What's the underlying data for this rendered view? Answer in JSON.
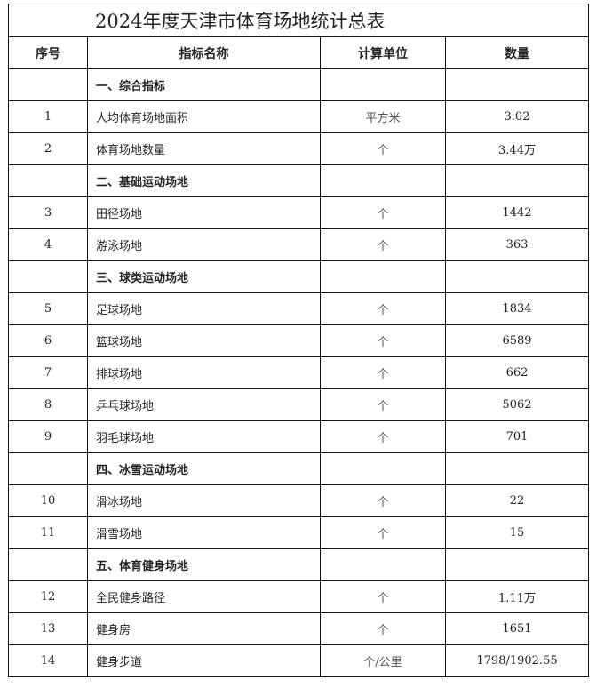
{
  "title": "2024年度天津市体育场地统计总表",
  "headers": [
    "序号",
    "指标名称",
    "计算单位",
    "数量"
  ],
  "rows": [
    {
      "no": "",
      "name": "一、综合指标",
      "unit": "",
      "value": "",
      "section": true
    },
    {
      "no": "1",
      "name": "人均体育场地面积",
      "unit": "平方米",
      "value": "3.02"
    },
    {
      "no": "2",
      "name": "体育场地数量",
      "unit": "个",
      "value": "3.44万"
    },
    {
      "no": "",
      "name": "二、基础运动场地",
      "unit": "",
      "value": "",
      "section": true
    },
    {
      "no": "3",
      "name": "田径场地",
      "unit": "个",
      "value": "1442"
    },
    {
      "no": "4",
      "name": "游泳场地",
      "unit": "个",
      "value": "363"
    },
    {
      "no": "",
      "name": "三、球类运动场地",
      "unit": "",
      "value": "",
      "section": true
    },
    {
      "no": "5",
      "name": "足球场地",
      "unit": "个",
      "value": "1834"
    },
    {
      "no": "6",
      "name": "篮球场地",
      "unit": "个",
      "value": "6589"
    },
    {
      "no": "7",
      "name": "排球场地",
      "unit": "个",
      "value": "662"
    },
    {
      "no": "8",
      "name": "乒乓球场地",
      "unit": "个",
      "value": "5062"
    },
    {
      "no": "9",
      "name": "羽毛球场地",
      "unit": "个",
      "value": "701"
    },
    {
      "no": "",
      "name": "四、冰雪运动场地",
      "unit": "",
      "value": "",
      "section": true
    },
    {
      "no": "10",
      "name": "滑冰场地",
      "unit": "个",
      "value": "22"
    },
    {
      "no": "11",
      "name": "滑雪场地",
      "unit": "个",
      "value": "15"
    },
    {
      "no": "",
      "name": "五、体育健身场地",
      "unit": "",
      "value": "",
      "section": true
    },
    {
      "no": "12",
      "name": "全民健身路径",
      "unit": "个",
      "value": "1.11万"
    },
    {
      "no": "13",
      "name": "健身房",
      "unit": "个",
      "value": "1651"
    },
    {
      "no": "14",
      "name": "健身步道",
      "unit": "个/公里",
      "value": "1798/1902.55"
    }
  ]
}
